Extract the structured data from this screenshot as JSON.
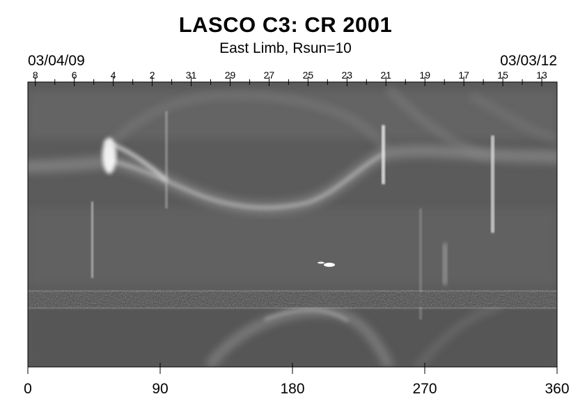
{
  "chart_data": {
    "type": "heatmap",
    "title": "LASCO C3: CR 2001",
    "subtitle": "East Limb, Rsun=10",
    "date_left": "03/04/09",
    "date_right": "03/03/12",
    "xlabel": "",
    "ylabel": "",
    "xlim": [
      0,
      360
    ],
    "x_ticks": [
      0,
      90,
      180,
      270,
      360
    ],
    "x_tick_labels": [
      "0",
      "90",
      "180",
      "270",
      "360"
    ],
    "day_ticks": [
      {
        "label": "8",
        "x": 5.1
      },
      {
        "label": "6",
        "x": 31.6
      },
      {
        "label": "4",
        "x": 58.1
      },
      {
        "label": "2",
        "x": 84.6
      },
      {
        "label": "31",
        "x": 111.1
      },
      {
        "label": "29",
        "x": 137.6
      },
      {
        "label": "27",
        "x": 164.1
      },
      {
        "label": "25",
        "x": 190.6
      },
      {
        "label": "23",
        "x": 217.1
      },
      {
        "label": "21",
        "x": 243.6
      },
      {
        "label": "19",
        "x": 270.1
      },
      {
        "label": "17",
        "x": 296.6
      },
      {
        "label": "15",
        "x": 323.1
      },
      {
        "label": "13",
        "x": 349.6
      }
    ],
    "colormap": "grayscale",
    "background_color": "#5a5a5a"
  }
}
